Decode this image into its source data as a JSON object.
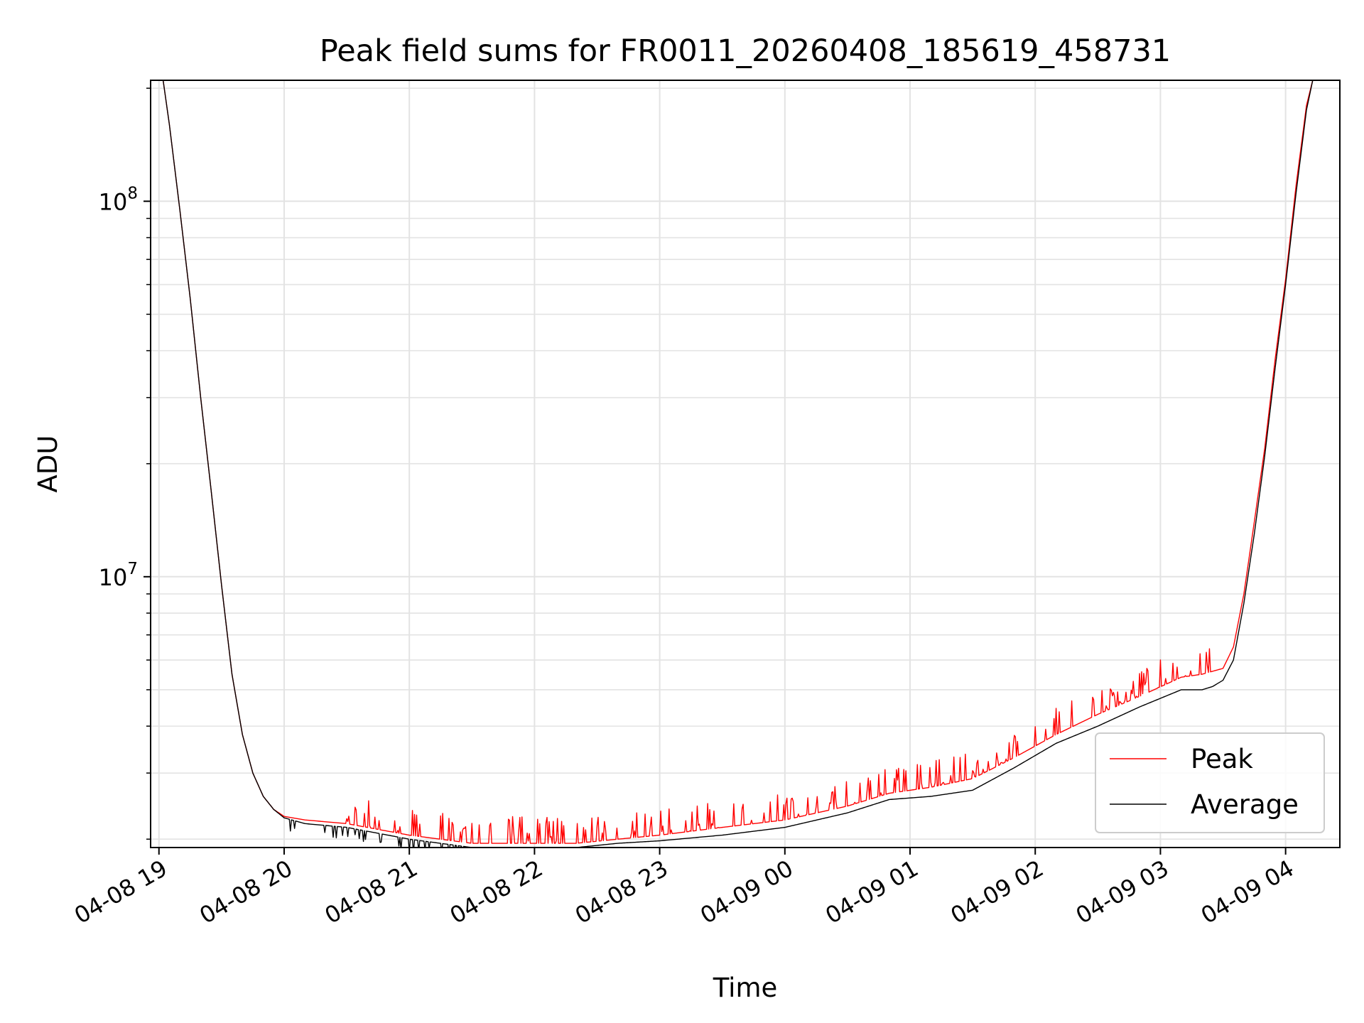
{
  "chart_data": {
    "type": "line",
    "title": "Peak field sums for FR0011_20260408_185619_458731",
    "xlabel": "Time",
    "ylabel": "ADU",
    "y_scale": "log",
    "ylim": [
      1900000,
      210000000
    ],
    "xlim": [
      "2026-04-08 18:56",
      "2026-04-09 04:26"
    ],
    "grid": true,
    "legend_position": "lower-right",
    "x_ticks": [
      {
        "value": "2026-04-08 19:00",
        "label": "04-08 19"
      },
      {
        "value": "2026-04-08 20:00",
        "label": "04-08 20"
      },
      {
        "value": "2026-04-08 21:00",
        "label": "04-08 21"
      },
      {
        "value": "2026-04-08 22:00",
        "label": "04-08 22"
      },
      {
        "value": "2026-04-08 23:00",
        "label": "04-08 23"
      },
      {
        "value": "2026-04-09 00:00",
        "label": "04-09 00"
      },
      {
        "value": "2026-04-09 01:00",
        "label": "04-09 01"
      },
      {
        "value": "2026-04-09 02:00",
        "label": "04-09 02"
      },
      {
        "value": "2026-04-09 03:00",
        "label": "04-09 03"
      },
      {
        "value": "2026-04-09 04:00",
        "label": "04-09 04"
      }
    ],
    "y_ticks": [
      {
        "value": 10000000,
        "base": "10",
        "exp": "7"
      },
      {
        "value": 100000000,
        "base": "10",
        "exp": "8"
      }
    ],
    "series": [
      {
        "name": "Peak",
        "color": "#ff0000",
        "x": [
          "2026-04-08 19:02",
          "2026-04-08 19:05",
          "2026-04-08 19:10",
          "2026-04-08 19:15",
          "2026-04-08 19:20",
          "2026-04-08 19:25",
          "2026-04-08 19:30",
          "2026-04-08 19:35",
          "2026-04-08 19:40",
          "2026-04-08 19:45",
          "2026-04-08 19:50",
          "2026-04-08 19:55",
          "2026-04-08 20:00",
          "2026-04-08 20:10",
          "2026-04-08 20:30",
          "2026-04-08 21:00",
          "2026-04-08 21:30",
          "2026-04-08 22:00",
          "2026-04-08 22:20",
          "2026-04-08 22:40",
          "2026-04-08 23:00",
          "2026-04-08 23:30",
          "2026-04-09 00:00",
          "2026-04-09 00:30",
          "2026-04-09 00:50",
          "2026-04-09 01:10",
          "2026-04-09 01:30",
          "2026-04-09 01:50",
          "2026-04-09 02:10",
          "2026-04-09 02:30",
          "2026-04-09 02:50",
          "2026-04-09 03:10",
          "2026-04-09 03:20",
          "2026-04-09 03:25",
          "2026-04-09 03:30",
          "2026-04-09 03:35",
          "2026-04-09 03:40",
          "2026-04-09 03:45",
          "2026-04-09 03:50",
          "2026-04-09 03:55",
          "2026-04-09 04:00",
          "2026-04-09 04:05",
          "2026-04-09 04:10",
          "2026-04-09 04:13"
        ],
        "y": [
          210000000,
          160000000,
          95000000,
          55000000,
          30000000,
          17000000,
          9500000,
          5500000,
          3800000,
          3000000,
          2600000,
          2400000,
          2300000,
          2250000,
          2200000,
          2050000,
          1950000,
          1950000,
          1950000,
          2000000,
          2050000,
          2150000,
          2250000,
          2450000,
          2650000,
          2750000,
          2900000,
          3300000,
          3800000,
          4300000,
          4800000,
          5400000,
          5500000,
          5600000,
          5700000,
          6500000,
          9000000,
          14000000,
          22000000,
          38000000,
          62000000,
          110000000,
          180000000,
          210000000
        ],
        "spikes": {
          "x_range": [
            "2026-04-08 20:30",
            "2026-04-09 03:25"
          ],
          "count": 240,
          "max_factor": 1.18
        }
      },
      {
        "name": "Average",
        "color": "#000000",
        "x": [
          "2026-04-08 19:02",
          "2026-04-08 19:05",
          "2026-04-08 19:10",
          "2026-04-08 19:15",
          "2026-04-08 19:20",
          "2026-04-08 19:25",
          "2026-04-08 19:30",
          "2026-04-08 19:35",
          "2026-04-08 19:40",
          "2026-04-08 19:45",
          "2026-04-08 19:50",
          "2026-04-08 19:55",
          "2026-04-08 20:00",
          "2026-04-08 20:10",
          "2026-04-08 20:30",
          "2026-04-08 21:00",
          "2026-04-08 21:30",
          "2026-04-08 22:00",
          "2026-04-08 22:20",
          "2026-04-08 22:40",
          "2026-04-08 23:00",
          "2026-04-08 23:30",
          "2026-04-09 00:00",
          "2026-04-09 00:30",
          "2026-04-09 00:50",
          "2026-04-09 01:10",
          "2026-04-09 01:30",
          "2026-04-09 01:50",
          "2026-04-09 02:10",
          "2026-04-09 02:30",
          "2026-04-09 02:50",
          "2026-04-09 03:10",
          "2026-04-09 03:20",
          "2026-04-09 03:25",
          "2026-04-09 03:30",
          "2026-04-09 03:35",
          "2026-04-09 03:40",
          "2026-04-09 03:45",
          "2026-04-09 03:50",
          "2026-04-09 03:55",
          "2026-04-09 04:00",
          "2026-04-09 04:05",
          "2026-04-09 04:10",
          "2026-04-09 04:13"
        ],
        "y": [
          210000000,
          160000000,
          95000000,
          55000000,
          30000000,
          17000000,
          9500000,
          5500000,
          3800000,
          3000000,
          2600000,
          2400000,
          2280000,
          2200000,
          2150000,
          2000000,
          1900000,
          1900000,
          1900000,
          1950000,
          1980000,
          2050000,
          2150000,
          2350000,
          2550000,
          2600000,
          2700000,
          3100000,
          3600000,
          4000000,
          4500000,
          5000000,
          5000000,
          5100000,
          5300000,
          6000000,
          8500000,
          13000000,
          21000000,
          36000000,
          60000000,
          105000000,
          175000000,
          210000000
        ],
        "dips": {
          "x_range": [
            "2026-04-08 20:00",
            "2026-04-08 22:00"
          ],
          "count": 45,
          "min_factor": 0.92
        }
      }
    ]
  }
}
